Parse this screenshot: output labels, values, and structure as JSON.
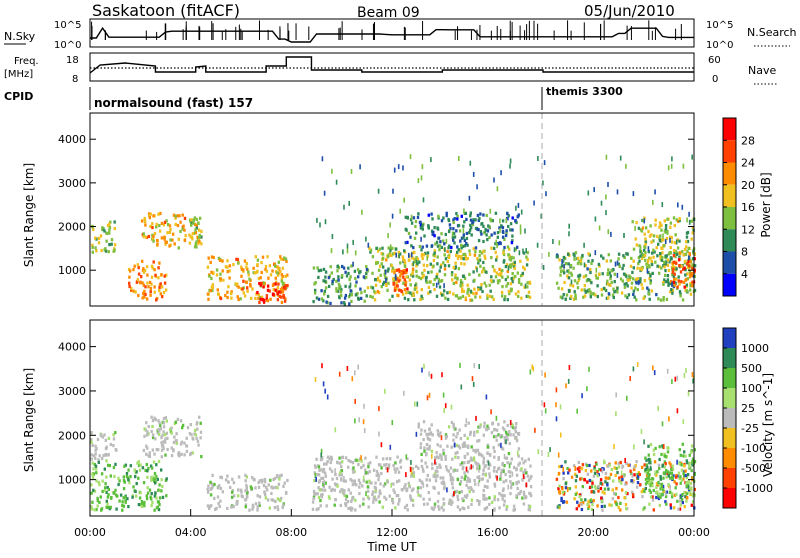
{
  "header": {
    "station": "Saskatoon (fitACF)",
    "beam": "Beam 09",
    "date": "05/Jun/2010"
  },
  "status_panels": {
    "nsky": {
      "label": "N.Sky",
      "ticks": [
        "10^5",
        "10^0"
      ]
    },
    "nsearch": {
      "label": "N.Search"
    },
    "freq": {
      "label_line1": "Freq.",
      "label_line2": "[MHz]",
      "ticks": [
        "18",
        "8"
      ]
    },
    "nave": {
      "label": "Nave",
      "ticks": [
        "60",
        "0"
      ]
    },
    "cpid": {
      "label": "CPID",
      "segments": [
        {
          "name": "normalsound (fast) 157",
          "start_hour": 0,
          "end_hour": 18.0
        },
        {
          "name": "themis 3300",
          "start_hour": 18.0,
          "end_hour": 24
        }
      ]
    }
  },
  "chart_data": [
    {
      "type": "heatmap",
      "title": "Power",
      "ylabel": "Slant Range [km]",
      "xlim": [
        0,
        24
      ],
      "ylim": [
        180,
        4600
      ],
      "yticks": [
        1000,
        2000,
        3000,
        4000
      ],
      "colorbar": {
        "label": "Power [dB]",
        "range": [
          0,
          30
        ],
        "ticks": [
          "4",
          "8",
          "12",
          "16",
          "20",
          "24",
          "28"
        ],
        "colors": [
          "#0000ff",
          "#1e4fa8",
          "#2e8b57",
          "#7fbf3f",
          "#f0c020",
          "#ff8c00",
          "#ff4000",
          "#ff0000"
        ]
      },
      "regions": [
        {
          "t": [
            0.0,
            1.0
          ],
          "r": [
            1400,
            2100
          ],
          "level": 14
        },
        {
          "t": [
            2.0,
            3.8
          ],
          "r": [
            1500,
            2300
          ],
          "level": 18
        },
        {
          "t": [
            3.9,
            4.4
          ],
          "r": [
            1500,
            2200
          ],
          "level": 16
        },
        {
          "t": [
            1.5,
            3.0
          ],
          "r": [
            300,
            1200
          ],
          "level": 20
        },
        {
          "t": [
            4.6,
            7.8
          ],
          "r": [
            300,
            1300
          ],
          "level": 18
        },
        {
          "t": [
            6.6,
            7.8
          ],
          "r": [
            250,
            700
          ],
          "level": 26
        },
        {
          "t": [
            8.8,
            11.0
          ],
          "r": [
            200,
            1100
          ],
          "level": 10
        },
        {
          "t": [
            11.0,
            17.5
          ],
          "r": [
            300,
            1500
          ],
          "level": 14
        },
        {
          "t": [
            12.0,
            12.6
          ],
          "r": [
            500,
            1000
          ],
          "level": 22
        },
        {
          "t": [
            12.5,
            17.0
          ],
          "r": [
            1500,
            2300
          ],
          "level": 8
        },
        {
          "t": [
            18.5,
            24.0
          ],
          "r": [
            300,
            1400
          ],
          "level": 12
        },
        {
          "t": [
            21.5,
            24.0
          ],
          "r": [
            1000,
            2200
          ],
          "level": 14
        },
        {
          "t": [
            23.0,
            24.0
          ],
          "r": [
            600,
            1400
          ],
          "level": 24
        }
      ]
    },
    {
      "type": "heatmap",
      "title": "Velocity",
      "ylabel": "Slant Range [km]",
      "xlabel": "Time UT",
      "xlim": [
        0,
        24
      ],
      "ylim": [
        180,
        4600
      ],
      "yticks": [
        1000,
        2000,
        3000,
        4000
      ],
      "xticks": [
        "00:00",
        "04:00",
        "08:00",
        "12:00",
        "16:00",
        "20:00",
        "00:00"
      ],
      "colorbar": {
        "label": "Velocity [m s^-1]",
        "ticks": [
          "1000",
          "500",
          "100",
          "25",
          "-25",
          "-100",
          "-500",
          "-1000"
        ],
        "colors": [
          "#2040c0",
          "#2e8b57",
          "#5cbf3c",
          "#a8e070",
          "#bbbbbb",
          "#f0c020",
          "#ff8c00",
          "#ff4000",
          "#ff0000"
        ]
      },
      "regions": [
        {
          "t": [
            0.0,
            1.0
          ],
          "r": [
            1400,
            2100
          ],
          "class": "ground"
        },
        {
          "t": [
            2.0,
            4.4
          ],
          "r": [
            1500,
            2400
          ],
          "class": "ground"
        },
        {
          "t": [
            0.0,
            3.0
          ],
          "r": [
            300,
            1400
          ],
          "class": "positive"
        },
        {
          "t": [
            4.6,
            7.8
          ],
          "r": [
            300,
            1100
          ],
          "class": "ground"
        },
        {
          "t": [
            8.8,
            17.5
          ],
          "r": [
            300,
            1500
          ],
          "class": "ground"
        },
        {
          "t": [
            13.0,
            17.0
          ],
          "r": [
            1500,
            2300
          ],
          "class": "ground"
        },
        {
          "t": [
            18.5,
            24.0
          ],
          "r": [
            300,
            1400
          ],
          "class": "mixed"
        },
        {
          "t": [
            22.0,
            24.0
          ],
          "r": [
            600,
            1800
          ],
          "class": "positive"
        }
      ]
    }
  ],
  "colors": {
    "axis": "#000000",
    "cpid_change": "#aaaaaa"
  }
}
